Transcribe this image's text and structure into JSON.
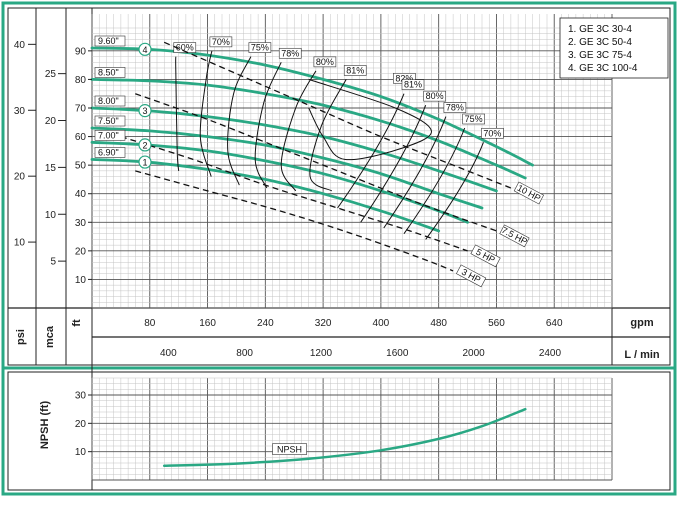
{
  "chart_data": [
    {
      "type": "line",
      "title": "",
      "legend": {
        "position": "top-right",
        "entries": [
          "1. GE 3C 30-4",
          "2. GE 3C 50-4",
          "3. GE 3C 75-4",
          "4. GE 3C 100-4"
        ]
      },
      "x_axes": {
        "gpm": {
          "label": "gpm",
          "ticks": [
            "80",
            "160",
            "240",
            "320",
            "400",
            "480",
            "560",
            "640"
          ],
          "range": [
            0,
            720
          ]
        },
        "lmin": {
          "label": "L / min",
          "ticks": [
            "400",
            "800",
            "1200",
            "1600",
            "2000",
            "2400"
          ]
        }
      },
      "y_axes": {
        "ft": {
          "label": "ft",
          "ticks": [
            "10",
            "20",
            "30",
            "40",
            "50",
            "60",
            "70",
            "80",
            "90"
          ],
          "range": [
            0,
            98
          ]
        },
        "mca": {
          "label": "mca",
          "ticks": [
            "5",
            "10",
            "15",
            "20",
            "25"
          ]
        },
        "psi": {
          "label": "psi",
          "ticks": [
            "10",
            "20",
            "30",
            "40"
          ]
        }
      },
      "grid": true,
      "impeller_curves": [
        {
          "label": "6.90\"",
          "marker": "1",
          "x": [
            0,
            80,
            160,
            240,
            320,
            400,
            480
          ],
          "y": [
            52,
            51,
            48.5,
            45,
            40,
            34,
            27
          ]
        },
        {
          "label": "7.00\"",
          "marker": "2",
          "x": [
            0,
            80,
            160,
            240,
            320,
            400,
            480,
            520
          ],
          "y": [
            58,
            57,
            55,
            51.5,
            47,
            41,
            34,
            30
          ]
        },
        {
          "label": "7.50\"",
          "marker": "",
          "x": [
            0,
            80,
            160,
            240,
            320,
            400,
            480,
            540
          ],
          "y": [
            63,
            62,
            60,
            57,
            52.5,
            47,
            40,
            35
          ]
        },
        {
          "label": "8.00\"",
          "marker": "3",
          "x": [
            0,
            80,
            160,
            240,
            320,
            400,
            480,
            560
          ],
          "y": [
            70,
            69,
            67,
            64,
            60,
            54.5,
            48,
            41
          ]
        },
        {
          "label": "8.50\"",
          "marker": "",
          "x": [
            0,
            80,
            160,
            240,
            320,
            400,
            480,
            560,
            600
          ],
          "y": [
            80,
            79.5,
            78,
            75,
            71,
            65.5,
            58.5,
            50,
            45.5
          ]
        },
        {
          "label": "9.60\"",
          "marker": "4",
          "x": [
            0,
            80,
            160,
            240,
            320,
            400,
            480,
            560,
            610
          ],
          "y": [
            91,
            90.5,
            88.5,
            85,
            80,
            74,
            66,
            56.5,
            50
          ]
        }
      ],
      "efficiency_labels": [
        "60%",
        "70%",
        "75%",
        "78%",
        "80%",
        "81%",
        "82%",
        "81%",
        "80%",
        "78%",
        "75%",
        "70%"
      ],
      "power_lines": [
        {
          "label": "10 HP",
          "x": [
            100,
            200,
            300,
            400,
            500,
            580
          ],
          "y": [
            93,
            82,
            71,
            60,
            50,
            42
          ]
        },
        {
          "label": "7.5 HP",
          "x": [
            60,
            160,
            260,
            360,
            460,
            560
          ],
          "y": [
            75,
            66,
            56,
            46,
            36,
            27
          ]
        },
        {
          "label": "5 HP",
          "x": [
            40,
            140,
            240,
            340,
            440,
            520
          ],
          "y": [
            60,
            52,
            43,
            35,
            27,
            20
          ]
        },
        {
          "label": "3 HP",
          "x": [
            60,
            160,
            260,
            360,
            460,
            500
          ],
          "y": [
            48,
            41,
            34,
            26,
            17,
            13
          ]
        }
      ]
    },
    {
      "type": "line",
      "title": "",
      "ylabel": "NPSH (ft)",
      "y_ticks": [
        "10",
        "20",
        "30"
      ],
      "y_range": [
        0,
        36
      ],
      "grid": true,
      "series": [
        {
          "name": "NPSH",
          "x": [
            100,
            200,
            300,
            400,
            480,
            540,
            600
          ],
          "y": [
            5,
            5.8,
            7.5,
            10.5,
            14.5,
            19,
            25
          ]
        }
      ]
    }
  ]
}
